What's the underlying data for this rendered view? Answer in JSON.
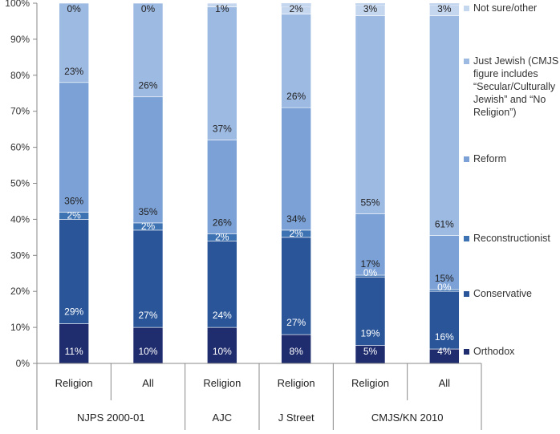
{
  "chart_data": {
    "type": "bar",
    "stacked": true,
    "ylim": [
      0,
      100
    ],
    "yticks": [
      "0%",
      "10%",
      "20%",
      "30%",
      "40%",
      "50%",
      "60%",
      "70%",
      "80%",
      "90%",
      "100%"
    ],
    "categories": [
      "Religion",
      "All",
      "Religion",
      "Religion",
      "Religion",
      "All"
    ],
    "groups": [
      {
        "label": "NJPS 2000-01",
        "count": 2
      },
      {
        "label": "AJC",
        "count": 1
      },
      {
        "label": "J Street",
        "count": 1
      },
      {
        "label": "CMJS/KN 2010",
        "count": 2
      }
    ],
    "series": [
      {
        "name": "Orthodox",
        "color": "#1f2c6e",
        "values": [
          11,
          10,
          10,
          8,
          5,
          4
        ],
        "labels": [
          "11%",
          "10%",
          "10%",
          "8%",
          "5%",
          "4%"
        ],
        "label_color": "#ffffff"
      },
      {
        "name": "Conservative",
        "color": "#2a5699",
        "values": [
          29,
          27,
          24,
          27,
          19,
          16
        ],
        "labels": [
          "29%",
          "27%",
          "24%",
          "27%",
          "19%",
          "16%"
        ],
        "label_color": "#ffffff"
      },
      {
        "name": "Reconstructionist",
        "color": "#3d72b3",
        "values": [
          2,
          2,
          2,
          2,
          0.5,
          0.5
        ],
        "labels": [
          "2%",
          "2%",
          "2%",
          "2%",
          "0%",
          "0%"
        ],
        "label_color": "#ffffff"
      },
      {
        "name": "Reform",
        "color": "#7ba1d6",
        "values": [
          36,
          35,
          26,
          34,
          17,
          15
        ],
        "labels": [
          "36%",
          "35%",
          "26%",
          "34%",
          "17%",
          "15%"
        ],
        "label_color": "#222222"
      },
      {
        "name": "Just Jewish (CMJS figure includes “Secular/Culturally Jewish” and “No Religion”)",
        "legend_lines": [
          "Just Jewish (CMJS",
          "figure includes",
          "“Secular/Culturally",
          "Jewish” and “No",
          "Religion”)"
        ],
        "color": "#9dbae3",
        "values": [
          23,
          26,
          37,
          26,
          55,
          61
        ],
        "labels": [
          "23%",
          "26%",
          "37%",
          "26%",
          "55%",
          "61%"
        ],
        "label_color": "#222222"
      },
      {
        "name": "Not sure/other",
        "color": "#c5d6ef",
        "values": [
          0,
          0,
          1,
          2,
          3,
          3
        ],
        "labels": [
          "0%",
          "0%",
          "1%",
          "2%",
          "3%",
          "3%"
        ],
        "label_color": "#222222"
      }
    ],
    "legend_placement": "right",
    "grid": false
  }
}
